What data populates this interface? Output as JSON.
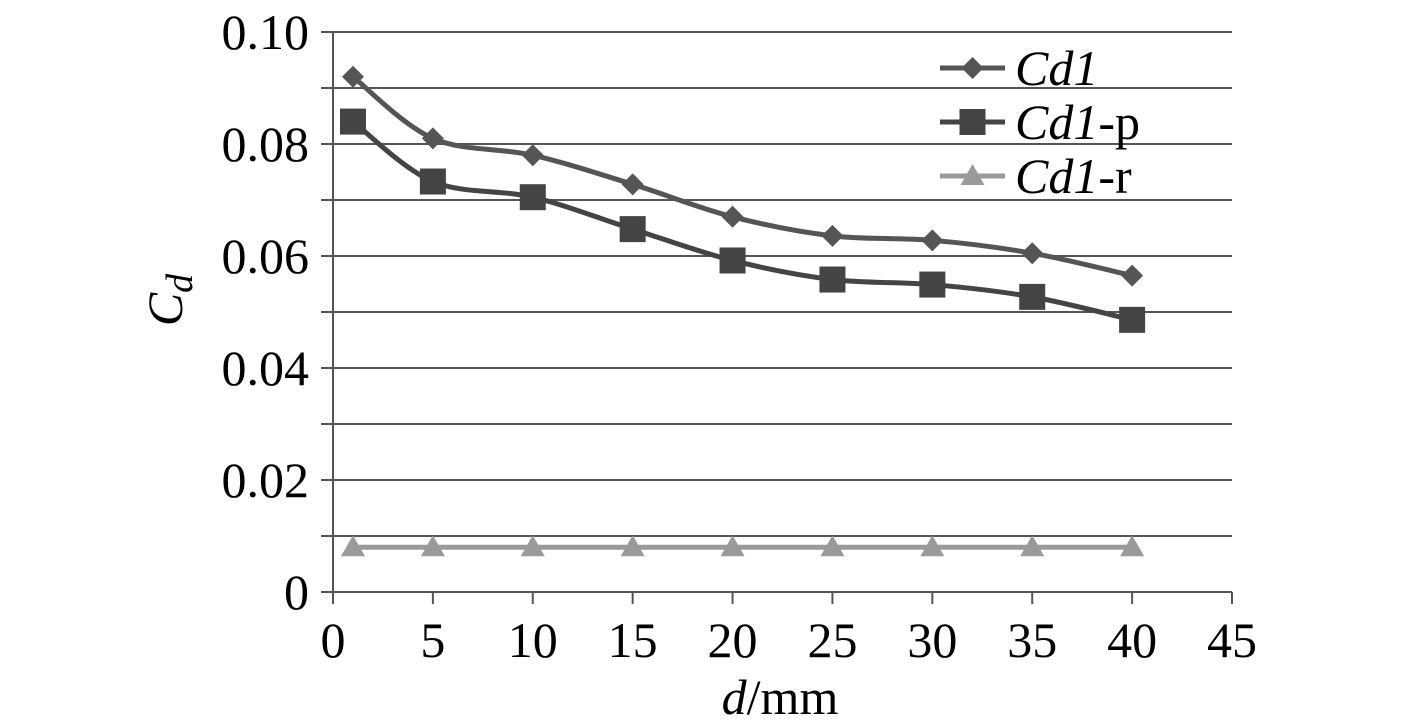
{
  "chart_data": {
    "type": "line",
    "xlabel_italic": "d",
    "xlabel_rest": "/mm",
    "ylabel_main": "C",
    "ylabel_sub": "d",
    "xlim": [
      0,
      45
    ],
    "ylim": [
      0,
      0.1
    ],
    "xticks": [
      0,
      5,
      10,
      15,
      20,
      25,
      30,
      35,
      40,
      45
    ],
    "xtick_labels": [
      "0",
      "5",
      "10",
      "15",
      "20",
      "25",
      "30",
      "35",
      "40",
      "45"
    ],
    "yticks": [
      0,
      0.01,
      0.02,
      0.03,
      0.04,
      0.05,
      0.06,
      0.07,
      0.08,
      0.09,
      0.1
    ],
    "ytick_labels": [
      "0",
      "",
      "0.02",
      "",
      "0.04",
      "",
      "0.06",
      "",
      "0.08",
      "",
      "0.10"
    ],
    "grid": true,
    "legend_position": "top-right",
    "x": [
      1,
      5,
      10,
      15,
      20,
      25,
      30,
      35,
      40
    ],
    "series": [
      {
        "name_italic": "Cd1",
        "name_suffix": "",
        "marker": "diamond",
        "color": "#555555",
        "values": [
          0.092,
          0.081,
          0.078,
          0.0728,
          0.067,
          0.0636,
          0.0628,
          0.0605,
          0.0565
        ]
      },
      {
        "name_italic": "Cd1",
        "name_suffix": "-p",
        "marker": "square",
        "color": "#444444",
        "values": [
          0.084,
          0.0733,
          0.0705,
          0.0648,
          0.0592,
          0.0558,
          0.0549,
          0.0527,
          0.0486
        ]
      },
      {
        "name_italic": "Cd1",
        "name_suffix": "-r",
        "marker": "triangle",
        "color": "#9a9a9a",
        "values": [
          0.008,
          0.008,
          0.008,
          0.008,
          0.008,
          0.008,
          0.008,
          0.008,
          0.008
        ]
      }
    ]
  }
}
